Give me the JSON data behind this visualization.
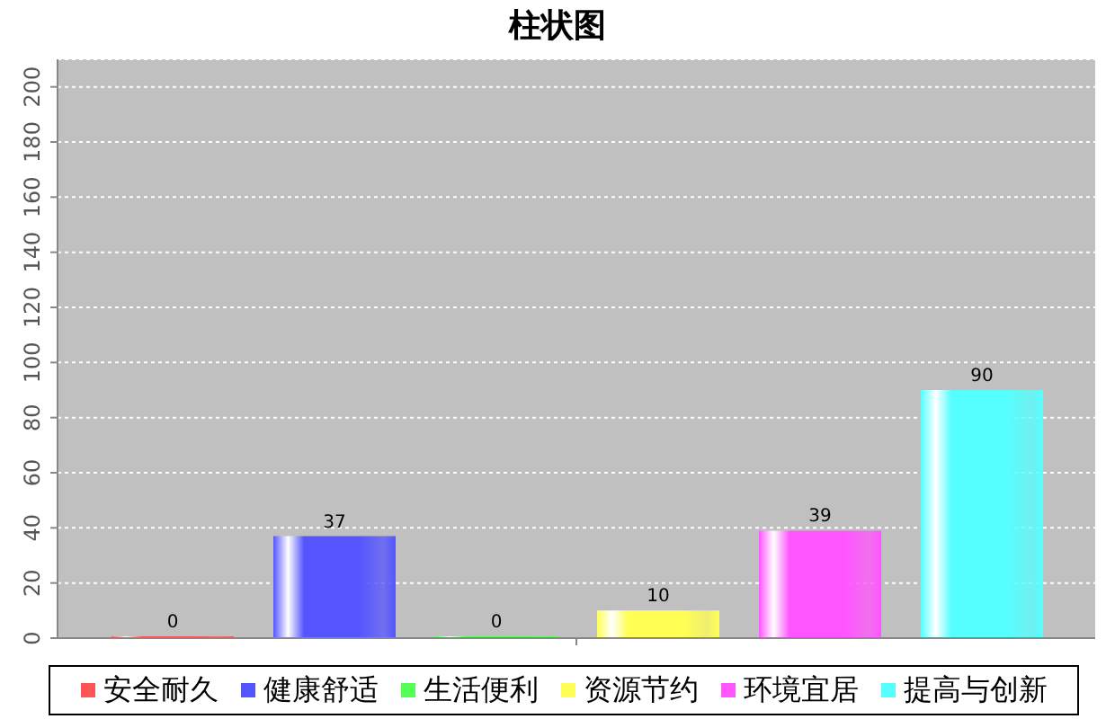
{
  "chart_data": {
    "type": "bar",
    "title": "柱状图",
    "categories": [
      null
    ],
    "series": [
      {
        "name": "安全耐久",
        "color": "#ff5555",
        "values": [
          0
        ]
      },
      {
        "name": "健康舒适",
        "color": "#5555ff",
        "values": [
          37
        ]
      },
      {
        "name": "生活便利",
        "color": "#55ff55",
        "values": [
          0
        ]
      },
      {
        "name": "资源节约",
        "color": "#ffff55",
        "values": [
          10
        ]
      },
      {
        "name": "环境宜居",
        "color": "#ff55ff",
        "values": [
          39
        ]
      },
      {
        "name": "提高与创新",
        "color": "#55ffff",
        "values": [
          90
        ]
      }
    ],
    "ylim": [
      0,
      210
    ],
    "yticks": [
      0,
      20,
      40,
      60,
      80,
      100,
      120,
      140,
      160,
      180,
      200
    ],
    "grid": "y",
    "legend": "bottom",
    "data_labels": true
  }
}
